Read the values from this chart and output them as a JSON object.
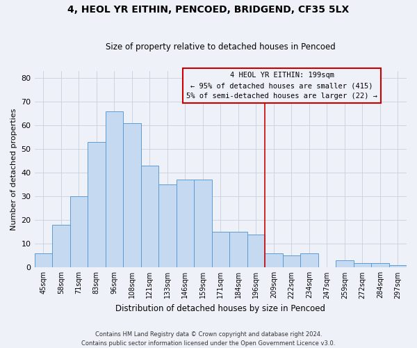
{
  "title": "4, HEOL YR EITHIN, PENCOED, BRIDGEND, CF35 5LX",
  "subtitle": "Size of property relative to detached houses in Pencoed",
  "xlabel": "Distribution of detached houses by size in Pencoed",
  "ylabel": "Number of detached properties",
  "bin_labels": [
    "45sqm",
    "58sqm",
    "71sqm",
    "83sqm",
    "96sqm",
    "108sqm",
    "121sqm",
    "133sqm",
    "146sqm",
    "159sqm",
    "171sqm",
    "184sqm",
    "196sqm",
    "209sqm",
    "222sqm",
    "234sqm",
    "247sqm",
    "259sqm",
    "272sqm",
    "284sqm",
    "297sqm"
  ],
  "bar_heights": [
    6,
    18,
    30,
    53,
    66,
    61,
    43,
    35,
    37,
    37,
    15,
    15,
    14,
    6,
    5,
    6,
    0,
    3,
    2,
    2,
    1
  ],
  "bar_color": "#c5d9f0",
  "bar_edge_color": "#5b9bd5",
  "bar_edge_width": 0.7,
  "ylim": [
    0,
    83
  ],
  "yticks": [
    0,
    10,
    20,
    30,
    40,
    50,
    60,
    70,
    80
  ],
  "grid_color": "#c8d0dc",
  "vline_color": "#cc0000",
  "annotation_title": "4 HEOL YR EITHIN: 199sqm",
  "annotation_line1": "← 95% of detached houses are smaller (415)",
  "annotation_line2": "5% of semi-detached houses are larger (22) →",
  "annotation_box_edge": "#cc0000",
  "footer_line1": "Contains HM Land Registry data © Crown copyright and database right 2024.",
  "footer_line2": "Contains public sector information licensed under the Open Government Licence v3.0.",
  "background_color": "#eef2f8"
}
